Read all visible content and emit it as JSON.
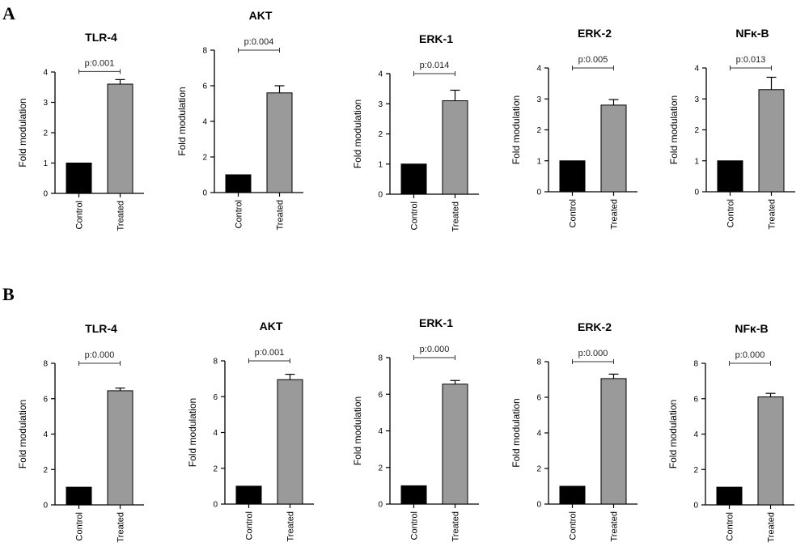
{
  "panels": [
    {
      "letter": "A"
    },
    {
      "letter": "B"
    }
  ],
  "styles": {
    "control_color": "#000000",
    "treated_color": "#9a9a9a",
    "axis_color": "#000000"
  },
  "chart_data": [
    {
      "panel": "A",
      "type": "bar",
      "title": "TLR-4",
      "ylabel": "Fold modulation",
      "xlabel": "",
      "categories": [
        "Control",
        "Treated"
      ],
      "values": [
        1,
        3.6
      ],
      "errors": [
        0,
        0.15
      ],
      "ylim": [
        0,
        4
      ],
      "yticks": [
        0,
        1,
        2,
        3,
        4
      ],
      "annotation": "p:0.001",
      "grid": false
    },
    {
      "panel": "A",
      "type": "bar",
      "title": "AKT",
      "ylabel": "Fold modulation",
      "xlabel": "",
      "categories": [
        "Control",
        "Treated"
      ],
      "values": [
        1,
        5.6
      ],
      "errors": [
        0,
        0.4
      ],
      "ylim": [
        0,
        8
      ],
      "yticks": [
        0,
        2,
        4,
        6,
        8
      ],
      "annotation": "p:0.004",
      "grid": false
    },
    {
      "panel": "A",
      "type": "bar",
      "title": "ERK-1",
      "ylabel": "Fold modulation",
      "xlabel": "",
      "categories": [
        "Control",
        "Treated"
      ],
      "values": [
        1,
        3.1
      ],
      "errors": [
        0,
        0.35
      ],
      "ylim": [
        0,
        4
      ],
      "yticks": [
        0,
        1,
        2,
        3,
        4
      ],
      "annotation": "p:0.014",
      "grid": false
    },
    {
      "panel": "A",
      "type": "bar",
      "title": "ERK-2",
      "ylabel": "Fold modulation",
      "xlabel": "",
      "categories": [
        "Control",
        "Treated"
      ],
      "values": [
        1,
        2.8
      ],
      "errors": [
        0,
        0.18
      ],
      "ylim": [
        0,
        4
      ],
      "yticks": [
        0,
        1,
        2,
        3,
        4
      ],
      "annotation": "p:0.005",
      "grid": false
    },
    {
      "panel": "A",
      "type": "bar",
      "title": "NFκ-B",
      "ylabel": "Fold modulation",
      "xlabel": "",
      "categories": [
        "Control",
        "Treated"
      ],
      "values": [
        1,
        3.3
      ],
      "errors": [
        0,
        0.4
      ],
      "ylim": [
        0,
        4
      ],
      "yticks": [
        0,
        1,
        2,
        3,
        4
      ],
      "annotation": "p:0.013",
      "grid": false
    },
    {
      "panel": "B",
      "type": "bar",
      "title": "TLR-4",
      "ylabel": "Fold modulation",
      "xlabel": "",
      "categories": [
        "Control",
        "Treated"
      ],
      "values": [
        1,
        6.45
      ],
      "errors": [
        0,
        0.15
      ],
      "ylim": [
        0,
        8
      ],
      "yticks": [
        0,
        2,
        4,
        6,
        8
      ],
      "annotation": "p:0.000",
      "grid": false
    },
    {
      "panel": "B",
      "type": "bar",
      "title": "AKT",
      "ylabel": "Fold modulation",
      "xlabel": "",
      "categories": [
        "Control",
        "Treated"
      ],
      "values": [
        1,
        6.95
      ],
      "errors": [
        0,
        0.3
      ],
      "ylim": [
        0,
        8
      ],
      "yticks": [
        0,
        2,
        4,
        6,
        8
      ],
      "annotation": "p:0.001",
      "grid": false
    },
    {
      "panel": "B",
      "type": "bar",
      "title": "ERK-1",
      "ylabel": "Fold modulation",
      "xlabel": "",
      "categories": [
        "Control",
        "Treated"
      ],
      "values": [
        1,
        6.55
      ],
      "errors": [
        0,
        0.2
      ],
      "ylim": [
        0,
        8
      ],
      "yticks": [
        0,
        2,
        4,
        6,
        8
      ],
      "annotation": "p:0.000",
      "grid": false
    },
    {
      "panel": "B",
      "type": "bar",
      "title": "ERK-2",
      "ylabel": "Fold modulation",
      "xlabel": "",
      "categories": [
        "Control",
        "Treated"
      ],
      "values": [
        1,
        7.05
      ],
      "errors": [
        0,
        0.25
      ],
      "ylim": [
        0,
        8
      ],
      "yticks": [
        0,
        2,
        4,
        6,
        8
      ],
      "annotation": "p:0.000",
      "grid": false
    },
    {
      "panel": "B",
      "type": "bar",
      "title": "NFκ-B",
      "ylabel": "Fold modulation",
      "xlabel": "",
      "categories": [
        "Control",
        "Treated"
      ],
      "values": [
        1,
        6.1
      ],
      "errors": [
        0,
        0.2
      ],
      "ylim": [
        0,
        8
      ],
      "yticks": [
        0,
        2,
        4,
        6,
        8
      ],
      "annotation": "p:0.000",
      "grid": false
    }
  ]
}
